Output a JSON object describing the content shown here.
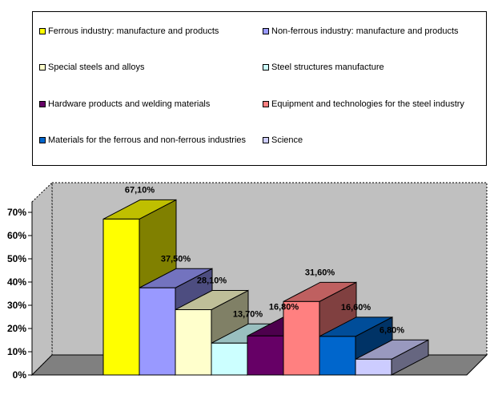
{
  "chart_data": {
    "type": "bar",
    "title": "",
    "xlabel": "",
    "ylabel": "",
    "ylim": [
      0,
      70
    ],
    "yticks": [
      "0%",
      "10%",
      "20%",
      "30%",
      "40%",
      "50%",
      "60%",
      "70%"
    ],
    "legend_position": "top",
    "series": [
      {
        "name": "Ferrous industry: manufacture and products",
        "value": 67.1,
        "label": "67,10%",
        "color": "#FFFF00"
      },
      {
        "name": "Non-ferrous industry: manufacture and products",
        "value": 37.5,
        "label": "37,50%",
        "color": "#9999FF"
      },
      {
        "name": "Special steels and alloys",
        "value": 28.1,
        "label": "28,10%",
        "color": "#FFFFCC"
      },
      {
        "name": "Steel structures manufacture",
        "value": 13.7,
        "label": "13,70%",
        "color": "#CCFFFF"
      },
      {
        "name": "Hardware products and welding materials",
        "value": 16.8,
        "label": "16,80%",
        "color": "#660066"
      },
      {
        "name": "Equipment and technologies for the steel industry",
        "value": 31.6,
        "label": "31,60%",
        "color": "#FF8080"
      },
      {
        "name": "Materials for the ferrous and non-ferrous industries",
        "value": 16.6,
        "label": "16,60%",
        "color": "#0066CC"
      },
      {
        "name": "Science",
        "value": 6.8,
        "label": "6,80%",
        "color": "#CCCCFF"
      }
    ],
    "plot_background": "#C0C0C0",
    "floor_color": "#808080"
  }
}
